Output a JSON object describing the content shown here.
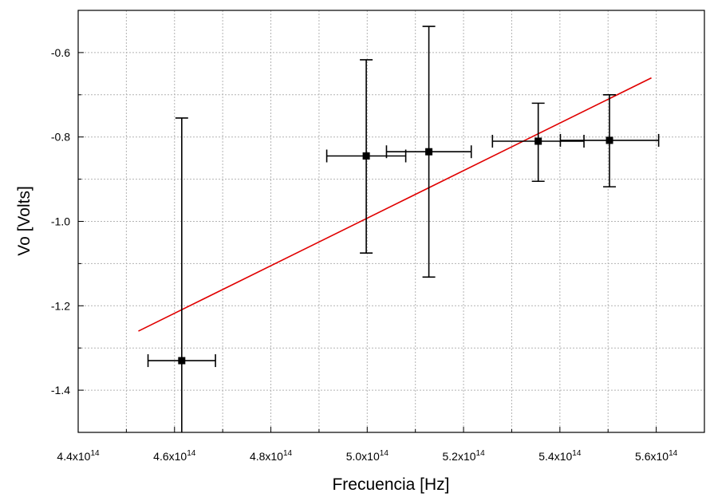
{
  "chart_data": {
    "type": "scatter",
    "title": "",
    "xlabel": "Frecuencia [Hz]",
    "ylabel": "Vo [Volts]",
    "xlim": [
      440000000000000.0,
      570000000000000.0
    ],
    "ylim": [
      -1.5,
      -0.5
    ],
    "x_ticks": [
      {
        "value": 440000000000000.0,
        "mantissa": "4.4x10",
        "exp": "14"
      },
      {
        "value": 460000000000000.0,
        "mantissa": "4.6x10",
        "exp": "14"
      },
      {
        "value": 480000000000000.0,
        "mantissa": "4.8x10",
        "exp": "14"
      },
      {
        "value": 500000000000000.0,
        "mantissa": "5.0x10",
        "exp": "14"
      },
      {
        "value": 520000000000000.0,
        "mantissa": "5.2x10",
        "exp": "14"
      },
      {
        "value": 540000000000000.0,
        "mantissa": "5.4x10",
        "exp": "14"
      },
      {
        "value": 560000000000000.0,
        "mantissa": "5.6x10",
        "exp": "14"
      }
    ],
    "y_ticks": [
      {
        "value": -0.6,
        "label": "-0.6"
      },
      {
        "value": -0.8,
        "label": "-0.8"
      },
      {
        "value": -1.0,
        "label": "-1.0"
      },
      {
        "value": -1.2,
        "label": "-1.2"
      },
      {
        "value": -1.4,
        "label": "-1.4"
      }
    ],
    "grid": true,
    "series": [
      {
        "kind": "errorbar",
        "color": "#000000",
        "points": [
          {
            "x": 461500000000000.0,
            "y": -1.33,
            "xerr": 7000000000000.0,
            "yerr_low": 0.2,
            "yerr_high": 0.575
          },
          {
            "x": 499800000000000.0,
            "y": -0.845,
            "xerr": 8200000000000.0,
            "yerr_low": 0.23,
            "yerr_high": 0.228
          },
          {
            "x": 512800000000000.0,
            "y": -0.835,
            "xerr": 8800000000000.0,
            "yerr_low": 0.297,
            "yerr_high": 0.297
          },
          {
            "x": 535500000000000.0,
            "y": -0.81,
            "xerr": 9500000000000.0,
            "yerr_low": 0.095,
            "yerr_high": 0.09
          },
          {
            "x": 550300000000000.0,
            "y": -0.808,
            "xerr": 10200000000000.0,
            "yerr_low": 0.11,
            "yerr_high": 0.108
          }
        ]
      },
      {
        "kind": "line",
        "color": "#e00000",
        "x": [
          452500000000000.0,
          559000000000000.0
        ],
        "y": [
          -1.26,
          -0.66
        ]
      }
    ]
  }
}
